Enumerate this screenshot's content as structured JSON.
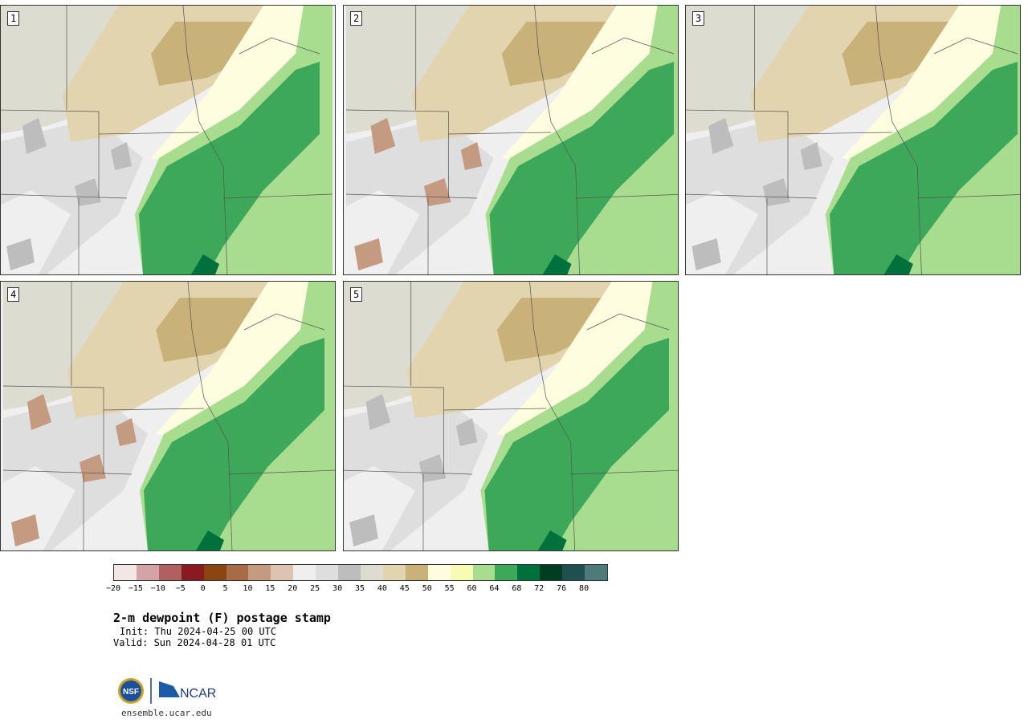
{
  "panels": [
    {
      "label": "1"
    },
    {
      "label": "2"
    },
    {
      "label": "3"
    },
    {
      "label": "4"
    },
    {
      "label": "5"
    }
  ],
  "legend": {
    "colors": [
      "#f3e6e6",
      "#d4a3a5",
      "#b06060",
      "#8a1a22",
      "#8b4513",
      "#a86b47",
      "#c49a80",
      "#dfc3b2",
      "#efefef",
      "#dedede",
      "#bdbdbd",
      "#dcdcd0",
      "#e2d4ae",
      "#c9b27a",
      "#fffde0",
      "#f8fbb3",
      "#a8dc8e",
      "#3ea85a",
      "#00703c",
      "#003d21",
      "#1f4f4f",
      "#4f7a7a"
    ],
    "ticks": [
      "−20",
      "−15",
      "−10",
      "−5",
      "0",
      "5",
      "10",
      "15",
      "20",
      "25",
      "30",
      "35",
      "40",
      "45",
      "50",
      "55",
      "60",
      "64",
      "68",
      "72",
      "76",
      "80"
    ]
  },
  "title": "2-m dewpoint (F) postage stamp",
  "init": "Init: Thu 2024-04-25 00 UTC",
  "valid": "Valid: Sun 2024-04-28 01 UTC",
  "logo": {
    "nsf": "NSF",
    "ncar": "NCAR"
  },
  "site": "ensemble.ucar.edu"
}
